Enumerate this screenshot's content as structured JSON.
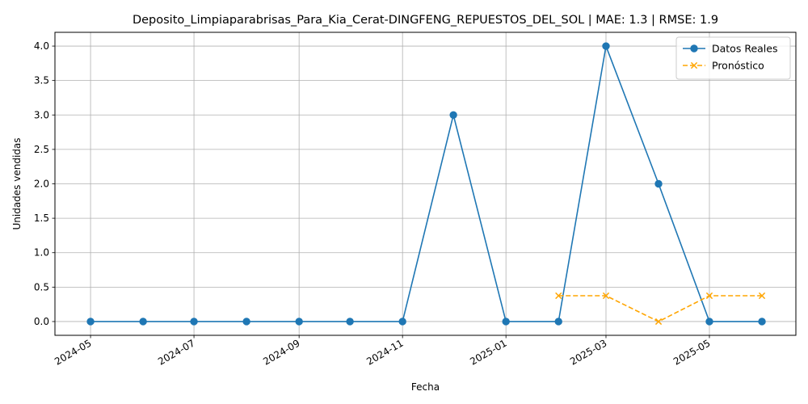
{
  "chart_data": {
    "type": "line",
    "title": "Deposito_Limpiaparabrisas_Para_Kia_Cerat-DINGFENG_REPUESTOS_DEL_SOL | MAE: 1.3 | RMSE: 1.9",
    "xlabel": "Fecha",
    "ylabel": "Unidades vendidas",
    "x_ticks": [
      "2024-05",
      "2024-07",
      "2024-09",
      "2024-11",
      "2025-01",
      "2025-03",
      "2025-05"
    ],
    "y_ticks": [
      "0.0",
      "0.5",
      "1.0",
      "1.5",
      "2.0",
      "2.5",
      "3.0",
      "3.5",
      "4.0"
    ],
    "ylim": [
      -0.2,
      4.2
    ],
    "xlim": [
      "2024-04-10",
      "2025-06-21"
    ],
    "grid": true,
    "legend_position": "top-right",
    "series": [
      {
        "name": "Datos Reales",
        "color": "#1f77b4",
        "marker": "circle",
        "linestyle": "solid",
        "x": [
          "2024-05-01",
          "2024-06-01",
          "2024-07-01",
          "2024-08-01",
          "2024-09-01",
          "2024-10-01",
          "2024-11-01",
          "2024-12-01",
          "2025-01-01",
          "2025-02-01",
          "2025-03-01",
          "2025-04-01",
          "2025-05-01",
          "2025-06-01"
        ],
        "y": [
          0,
          0,
          0,
          0,
          0,
          0,
          0,
          3,
          0,
          0,
          4,
          2,
          0,
          0
        ]
      },
      {
        "name": "Pronóstico",
        "color": "#ffa500",
        "marker": "x",
        "linestyle": "dashed",
        "x": [
          "2025-02-01",
          "2025-03-01",
          "2025-04-01",
          "2025-05-01",
          "2025-06-01"
        ],
        "y": [
          0.375,
          0.375,
          0,
          0.375,
          0.375
        ]
      }
    ]
  }
}
